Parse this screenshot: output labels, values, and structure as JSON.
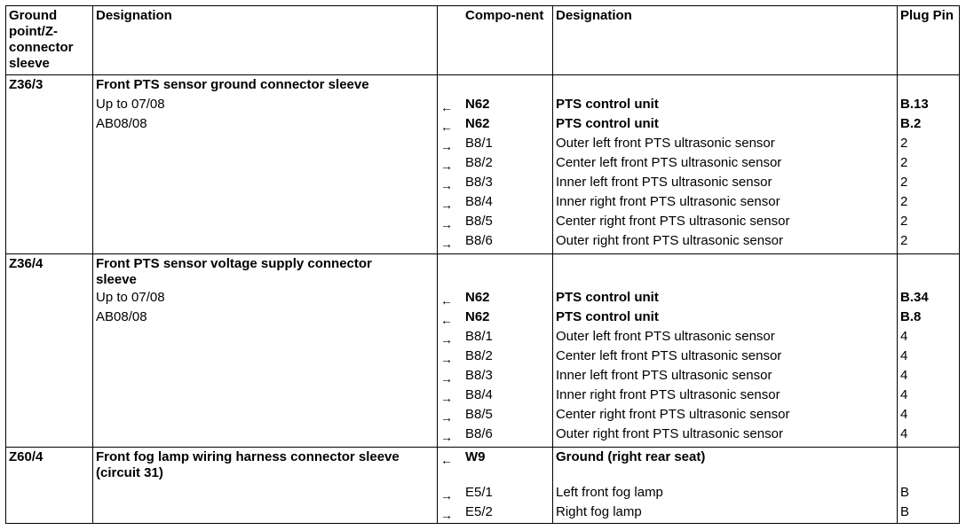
{
  "headers": {
    "ground_point": "Ground point/Z-connector sleeve",
    "designation": "Designation",
    "component": "Compo-nent",
    "designation2": "Designation",
    "plug_pin": "Plug Pin"
  },
  "sections": [
    {
      "point": "Z36/3",
      "title": "Front PTS sensor ground connector sleeve",
      "notes": [
        "Up to 07/08",
        "AB08/08"
      ],
      "rows": [
        {
          "arrow": "←",
          "component": "N62",
          "designation": "PTS control unit",
          "pin": "B.13",
          "bold": true
        },
        {
          "arrow": "←",
          "component": "N62",
          "designation": "PTS control unit",
          "pin": "B.2",
          "bold": true
        },
        {
          "arrow": "→",
          "component": "B8/1",
          "designation": "Outer left front PTS ultrasonic sensor",
          "pin": "2",
          "bold": false
        },
        {
          "arrow": "→",
          "component": "B8/2",
          "designation": "Center left front PTS ultrasonic sensor",
          "pin": "2",
          "bold": false
        },
        {
          "arrow": "→",
          "component": "B8/3",
          "designation": "Inner left front PTS ultrasonic sensor",
          "pin": "2",
          "bold": false
        },
        {
          "arrow": "→",
          "component": "B8/4",
          "designation": "Inner right front PTS ultrasonic sensor",
          "pin": "2",
          "bold": false
        },
        {
          "arrow": "→",
          "component": "B8/5",
          "designation": "Center right front PTS ultrasonic sensor",
          "pin": "2",
          "bold": false
        },
        {
          "arrow": "→",
          "component": "B8/6",
          "designation": "Outer right front PTS ultrasonic sensor",
          "pin": "2",
          "bold": false
        }
      ]
    },
    {
      "point": "Z36/4",
      "title": "Front PTS sensor voltage supply connector sleeve",
      "notes": [
        "Up to 07/08",
        "AB08/08"
      ],
      "rows": [
        {
          "arrow": "←",
          "component": "N62",
          "designation": "PTS control unit",
          "pin": "B.34",
          "bold": true
        },
        {
          "arrow": "←",
          "component": "N62",
          "designation": "PTS control unit",
          "pin": "B.8",
          "bold": true
        },
        {
          "arrow": "→",
          "component": "B8/1",
          "designation": "Outer left front PTS ultrasonic sensor",
          "pin": "4",
          "bold": false
        },
        {
          "arrow": "→",
          "component": "B8/2",
          "designation": "Center left front PTS ultrasonic sensor",
          "pin": "4",
          "bold": false
        },
        {
          "arrow": "→",
          "component": "B8/3",
          "designation": "Inner left front PTS ultrasonic sensor",
          "pin": "4",
          "bold": false
        },
        {
          "arrow": "→",
          "component": "B8/4",
          "designation": "Inner right front PTS ultrasonic sensor",
          "pin": "4",
          "bold": false
        },
        {
          "arrow": "→",
          "component": "B8/5",
          "designation": "Center right front PTS ultrasonic sensor",
          "pin": "4",
          "bold": false
        },
        {
          "arrow": "→",
          "component": "B8/6",
          "designation": "Outer right front PTS ultrasonic sensor",
          "pin": "4",
          "bold": false
        }
      ]
    },
    {
      "point": "Z60/4",
      "title": "Front fog lamp wiring harness connector sleeve (circuit 31)",
      "notes": [],
      "rows": [
        {
          "arrow": "←",
          "component": "W9",
          "designation": "Ground (right rear seat)",
          "pin": "",
          "bold": true
        },
        {
          "arrow": "→",
          "component": "E5/1",
          "designation": "Left front fog lamp",
          "pin": "B",
          "bold": false
        },
        {
          "arrow": "→",
          "component": "E5/2",
          "designation": "Right fog lamp",
          "pin": "B",
          "bold": false
        }
      ]
    }
  ]
}
